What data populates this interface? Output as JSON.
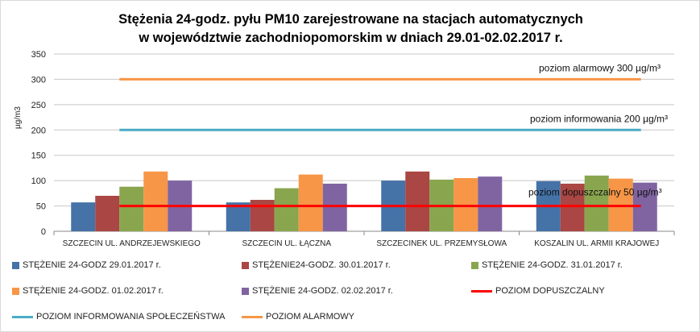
{
  "chart_data": {
    "type": "bar",
    "title_line1": "Stężenia 24-godz. pyłu PM10 zarejestrowane na stacjach automatycznych",
    "title_line2": "w województwie zachodniopomorskim w dniach 29.01-02.02.2017 r.",
    "ylabel": "µg/m3",
    "ylim": [
      0,
      350
    ],
    "yticks": [
      "0",
      "50",
      "100",
      "150",
      "200",
      "250",
      "300",
      "350"
    ],
    "categories": [
      "SZCZECIN UL. ANDRZEJEWSKIEGO",
      "SZCZECIN UL. ŁĄCZNA",
      "SZCZECINEK UL. PRZEMYSŁOWA",
      "KOSZALIN UL. ARMII KRAJOWEJ"
    ],
    "series": [
      {
        "name": "STĘŻENIE 24-GODZ 29.01.2017 r.",
        "color": "#4572a7",
        "values": [
          57,
          57,
          100,
          99
        ]
      },
      {
        "name": "STĘŻENIE24-GODZ. 30.01.2017 r.",
        "color": "#aa4643",
        "values": [
          70,
          62,
          118,
          94
        ]
      },
      {
        "name": "STĘŻENIE 24-GODZ. 31.01.2017 r.",
        "color": "#89a54e",
        "values": [
          88,
          85,
          102,
          110
        ]
      },
      {
        "name": "STĘŻENIE 24-GODZ. 01.02.2017 r.",
        "color": "#f79646",
        "values": [
          118,
          112,
          105,
          104
        ]
      },
      {
        "name": "STĘŻENIE 24-GODZ. 02.02.2017 r.",
        "color": "#8064a2",
        "values": [
          100,
          94,
          108,
          96
        ]
      }
    ],
    "lines": [
      {
        "name": "POZIOM DOPUSZCZALNY",
        "color": "#ff0000",
        "value": 50,
        "annotation": "poziom dopuszczalny 50 µg/m³"
      },
      {
        "name": "POZIOM INFORMOWANIA SPOŁECZEŃSTWA",
        "color": "#4bacc6",
        "value": 200,
        "annotation": "poziom informowania 200 µg/m³"
      },
      {
        "name": "POZIOM ALARMOWY",
        "color": "#f79646",
        "value": 300,
        "annotation": "poziom alarmowy 300 µg/m³"
      }
    ],
    "grid": true,
    "legend": "bottom"
  }
}
